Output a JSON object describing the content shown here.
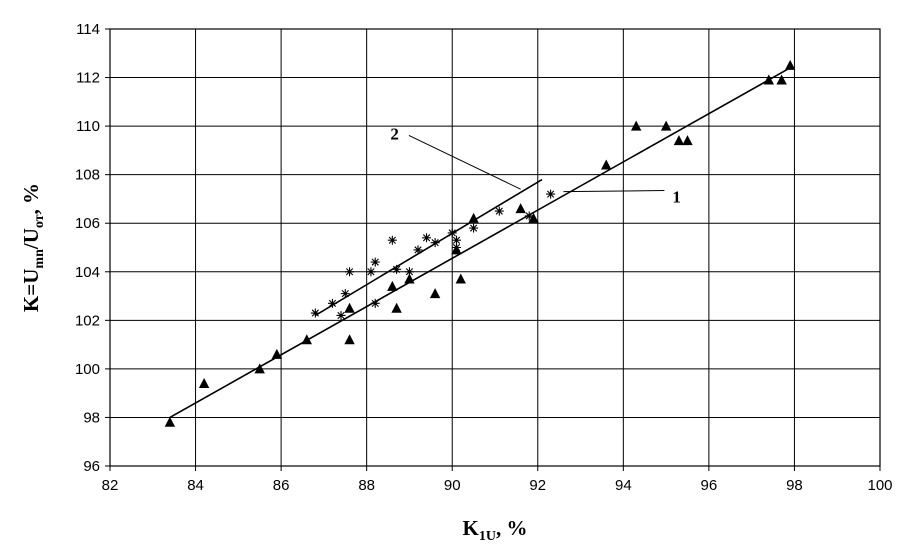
{
  "chart_data": {
    "type": "scatter",
    "title": "",
    "xlabel": {
      "main": "K",
      "sub": "1U",
      "suffix": ", %"
    },
    "ylabel": {
      "p1": "K=U",
      "s1": "mn",
      "p2": "/U",
      "s2": "от",
      "p3": ", %"
    },
    "xlim": [
      82,
      100
    ],
    "ylim": [
      96,
      114
    ],
    "xticks": [
      "82",
      "84",
      "86",
      "88",
      "90",
      "92",
      "94",
      "96",
      "98",
      "100"
    ],
    "yticks": [
      "96",
      "98",
      "100",
      "102",
      "104",
      "106",
      "108",
      "110",
      "112",
      "114"
    ],
    "grid": true,
    "legend": "none",
    "series": [
      {
        "marker": "triangle",
        "color": "#000000",
        "points": [
          [
            83.4,
            97.8
          ],
          [
            84.2,
            99.4
          ],
          [
            85.5,
            100.0
          ],
          [
            85.9,
            100.6
          ],
          [
            86.6,
            101.2
          ],
          [
            87.6,
            102.5
          ],
          [
            87.6,
            101.2
          ],
          [
            88.6,
            103.4
          ],
          [
            88.7,
            102.5
          ],
          [
            89.0,
            103.7
          ],
          [
            89.6,
            103.1
          ],
          [
            90.1,
            104.9
          ],
          [
            90.2,
            103.7
          ],
          [
            90.5,
            106.2
          ],
          [
            91.6,
            106.6
          ],
          [
            91.9,
            106.2
          ],
          [
            93.6,
            108.4
          ],
          [
            94.3,
            110.0
          ],
          [
            95.0,
            110.0
          ],
          [
            95.3,
            109.4
          ],
          [
            95.5,
            109.4
          ],
          [
            97.4,
            111.9
          ],
          [
            97.7,
            111.9
          ],
          [
            97.9,
            112.5
          ]
        ]
      },
      {
        "marker": "star",
        "color": "#000000",
        "points": [
          [
            86.8,
            102.3
          ],
          [
            87.2,
            102.7
          ],
          [
            87.4,
            102.2
          ],
          [
            87.5,
            103.1
          ],
          [
            87.6,
            104.0
          ],
          [
            88.1,
            104.0
          ],
          [
            88.2,
            104.4
          ],
          [
            88.2,
            102.7
          ],
          [
            88.6,
            105.3
          ],
          [
            88.7,
            104.1
          ],
          [
            89.0,
            104.0
          ],
          [
            89.2,
            104.9
          ],
          [
            89.4,
            105.4
          ],
          [
            89.6,
            105.2
          ],
          [
            90.0,
            105.6
          ],
          [
            90.1,
            105.3
          ],
          [
            90.1,
            105.0
          ],
          [
            90.5,
            105.8
          ],
          [
            91.1,
            106.5
          ],
          [
            91.8,
            106.3
          ],
          [
            92.3,
            107.2
          ]
        ]
      }
    ],
    "lines": [
      {
        "from": [
          83.4,
          98.0
        ],
        "to": [
          97.9,
          112.4
        ]
      },
      {
        "from": [
          86.8,
          102.2
        ],
        "to": [
          92.1,
          107.8
        ]
      }
    ],
    "annotations": [
      {
        "text": "1",
        "x": 95.1,
        "y": 107.1,
        "target": [
          92.6,
          107.3
        ]
      },
      {
        "text": "2",
        "x": 88.8,
        "y": 109.7,
        "target": [
          91.6,
          107.4
        ]
      }
    ]
  }
}
